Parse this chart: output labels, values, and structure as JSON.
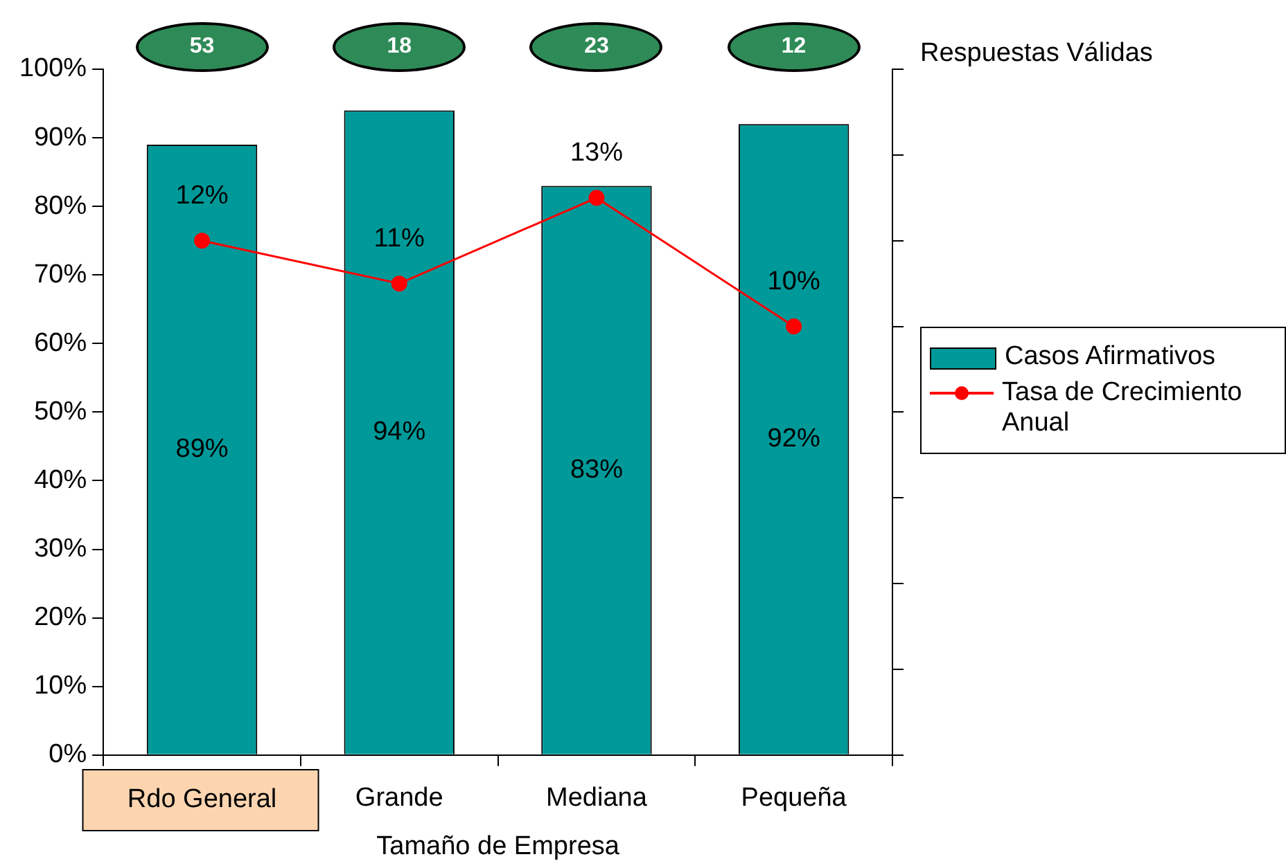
{
  "chart_data": {
    "type": "bar",
    "xlabel": "Tamaño de Empresa",
    "categories": [
      "Rdo General",
      "Grande",
      "Mediana",
      "Pequeña"
    ],
    "series": [
      {
        "name": "Casos Afirmativos",
        "color": "#009999",
        "values": [
          89,
          94,
          83,
          92
        ],
        "value_labels": [
          "89%",
          "94%",
          "83%",
          "92%"
        ]
      },
      {
        "name": "Tasa de Crecimiento Anual",
        "type": "line",
        "axis": "y2",
        "color": "#ff0000",
        "values": [
          12,
          11,
          13,
          10
        ],
        "value_labels": [
          "12%",
          "11%",
          "13%",
          "10%"
        ]
      }
    ],
    "ylim": [
      0,
      100
    ],
    "yticks": [
      {
        "value": 0,
        "label": "0%"
      },
      {
        "value": 10,
        "label": "10%"
      },
      {
        "value": 20,
        "label": "20%"
      },
      {
        "value": 30,
        "label": "30%"
      },
      {
        "value": 40,
        "label": "40%"
      },
      {
        "value": 50,
        "label": "50%"
      },
      {
        "value": 60,
        "label": "60%"
      },
      {
        "value": 70,
        "label": "70%"
      },
      {
        "value": 80,
        "label": "80%"
      },
      {
        "value": 90,
        "label": "90%"
      },
      {
        "value": 100,
        "label": "100%"
      }
    ],
    "grid": false,
    "legend": "right",
    "marker": "circle",
    "line_style": "solid",
    "annotations": [
      "Respuestas Válidas",
      "53",
      "18",
      "23",
      "12"
    ]
  }
}
